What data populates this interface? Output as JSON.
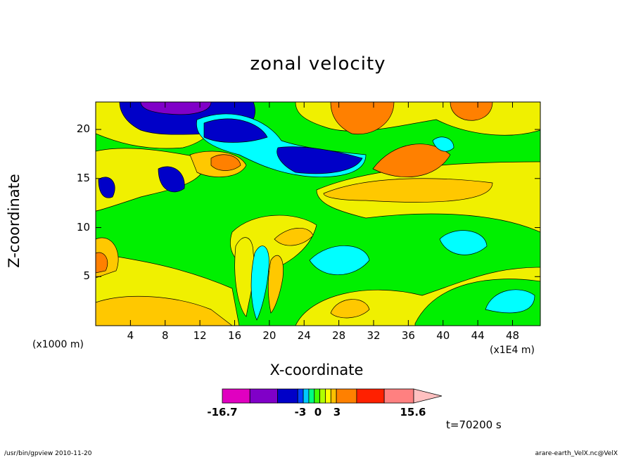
{
  "chart_data": {
    "type": "heatmap",
    "title": "zonal velocity",
    "xlabel": "X-coordinate",
    "ylabel": "Z-coordinate",
    "x_multiplier": "(x1E4 m)",
    "y_multiplier": "(x1000 m)",
    "xlim": [
      0,
      51.2
    ],
    "ylim": [
      0,
      22.8
    ],
    "x_ticks": [
      "4",
      "8",
      "12",
      "16",
      "20",
      "24",
      "28",
      "32",
      "36",
      "40",
      "44",
      "48"
    ],
    "y_ticks": [
      "5",
      "10",
      "15",
      "20"
    ],
    "colorbar": {
      "min": -16.7,
      "max": 15.6,
      "labels": [
        "-16.7",
        "-3",
        "0",
        "3",
        "15.6"
      ],
      "colors": [
        "#e000c0",
        "#8000c8",
        "#0000c8",
        "#0040ff",
        "#00c8ff",
        "#00ff80",
        "#40ff00",
        "#b0ff00",
        "#ffff00",
        "#ffc000",
        "#ff8000",
        "#ff2000",
        "#ff8080",
        "#ffc0c0"
      ]
    },
    "time_label": "t=70200 s"
  },
  "footer": {
    "left": "/usr/bin/gpview   2010-11-20",
    "right": "arare-earth_VelX.nc@VelX"
  }
}
